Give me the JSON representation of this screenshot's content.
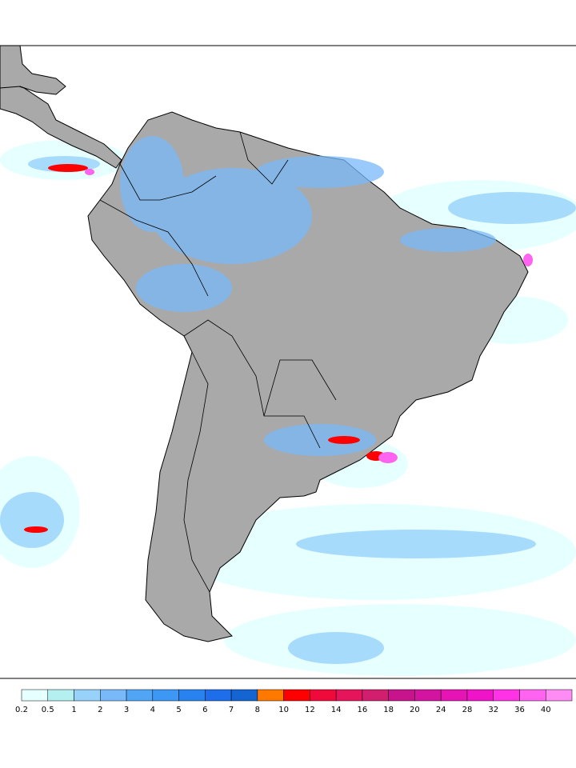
{
  "colorbar": {
    "levels": [
      0.2,
      0.5,
      1,
      2,
      3,
      4,
      5,
      6,
      7,
      8,
      10,
      12,
      14,
      16,
      18,
      20,
      24,
      28,
      32,
      36,
      40
    ],
    "colors": [
      "#e6ffff",
      "#b4f0f0",
      "#96d2fa",
      "#78b9fa",
      "#50a5f5",
      "#3c97f5",
      "#2882f0",
      "#1e6eeb",
      "#1464d2",
      "#ff7800",
      "#ff0000",
      "#f00a3c",
      "#e6145a",
      "#d21e6e",
      "#c8148c",
      "#d214a0",
      "#e614b4",
      "#f014c8",
      "#ff32e6",
      "#ff64f0",
      "#ff8cf5"
    ]
  }
}
